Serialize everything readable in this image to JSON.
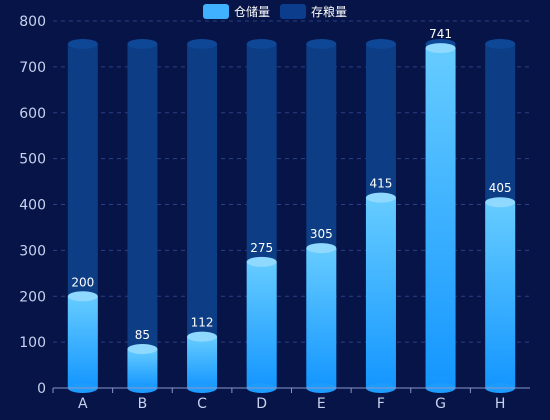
{
  "chart_data": {
    "type": "bar",
    "categories": [
      "A",
      "B",
      "C",
      "D",
      "E",
      "F",
      "G",
      "H"
    ],
    "series": [
      {
        "name": "仓储量",
        "values": [
          200,
          85,
          112,
          275,
          305,
          415,
          741,
          405
        ]
      },
      {
        "name": "存粮量",
        "values": [
          750,
          750,
          750,
          750,
          750,
          750,
          750,
          750
        ]
      }
    ],
    "ylim": [
      0,
      800
    ],
    "yticks": [
      0,
      100,
      200,
      300,
      400,
      500,
      600,
      700,
      800
    ],
    "grid": true,
    "legend_position": "top-center",
    "colors": {
      "background": "#061447",
      "bar_top": "#66ccff",
      "bar_bottom": "#1496ff",
      "bar_cap": "#8fd9ff",
      "track": "#0c3d85",
      "track_cap": "#0e4796",
      "grid": "#2b3f86",
      "axis_text": "#c8d2ee",
      "label_text": "#ffffff"
    }
  },
  "legend": [
    {
      "name": "仓储量",
      "color": "#3fb1ff"
    },
    {
      "name": "存粮量",
      "color": "#0b3d8c"
    }
  ]
}
